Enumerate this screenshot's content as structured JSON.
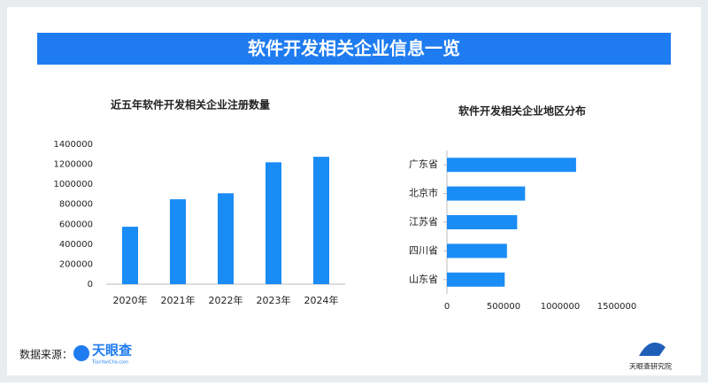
{
  "header": {
    "title": "软件开发相关企业信息一览"
  },
  "chart_data": [
    {
      "type": "bar",
      "title": "近五年软件开发相关企业注册数量",
      "categories": [
        "2020年",
        "2021年",
        "2022年",
        "2023年",
        "2024年"
      ],
      "values": [
        575000,
        850000,
        910000,
        1220000,
        1275000
      ],
      "color": "#1a8cf5",
      "ylim": [
        0,
        1400000
      ],
      "yticks": [
        0,
        200000,
        400000,
        600000,
        800000,
        1000000,
        1200000,
        1400000
      ],
      "grid": false
    },
    {
      "type": "barh",
      "title": "软件开发相关企业地区分布",
      "categories": [
        "广东省",
        "北京市",
        "江苏省",
        "四川省",
        "山东省"
      ],
      "values": [
        1140000,
        690000,
        620000,
        530000,
        510000
      ],
      "color": "#1a8cf5",
      "xlim": [
        0,
        1500000
      ],
      "xticks": [
        0,
        500000,
        1000000,
        1500000
      ],
      "grid": false
    }
  ],
  "footer": {
    "source_label": "数据来源：",
    "source_logo": "天眼查",
    "source_url": "TianYanCha.com",
    "brand": "天眼查研究院"
  }
}
